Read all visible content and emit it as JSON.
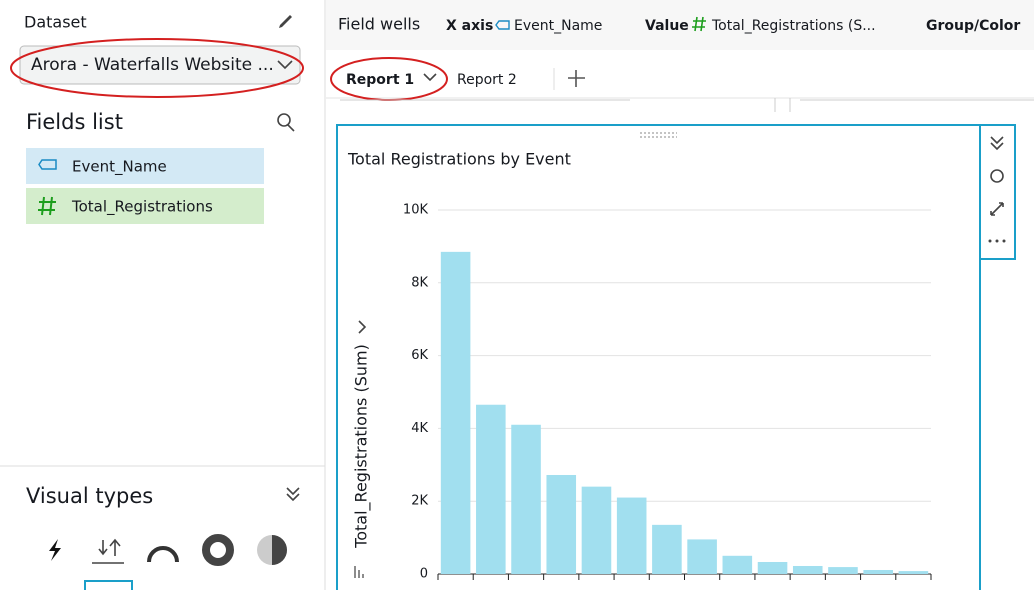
{
  "sidebar": {
    "dataset_label": "Dataset",
    "dataset_name": "Arora - Waterfalls Website ...",
    "fields_title": "Fields list",
    "fields": [
      "Event_Name",
      "Total_Registrations"
    ],
    "visual_types_title": "Visual types"
  },
  "field_wells": {
    "title": "Field wells",
    "x_axis_label": "X axis",
    "x_axis_field": "Event_Name",
    "value_label": "Value",
    "value_field": "Total_Registrations (S...",
    "group_label": "Group/Color"
  },
  "tabs": [
    "Report 1",
    "Report 2"
  ],
  "chart_data": {
    "type": "bar",
    "title": "Total Registrations by Event",
    "y_label": "Total_Registrations (Sum)",
    "categories": [
      null,
      null,
      null,
      null,
      null,
      null,
      null,
      null,
      null,
      null,
      null,
      null,
      null,
      null
    ],
    "values": [
      8850,
      4650,
      4100,
      2720,
      2400,
      2100,
      1350,
      950,
      500,
      330,
      220,
      190,
      110,
      80
    ],
    "color": "#a1dfef",
    "ylim": [
      0,
      10000
    ],
    "yticks": [
      0,
      {
        "value": 2000,
        "label": "2K"
      },
      {
        "value": 4000,
        "label": "4K"
      },
      {
        "value": 6000,
        "label": "6K"
      },
      {
        "value": 8000,
        "label": "8K"
      },
      {
        "value": 10000,
        "label": "10K"
      }
    ],
    "grid": true
  }
}
